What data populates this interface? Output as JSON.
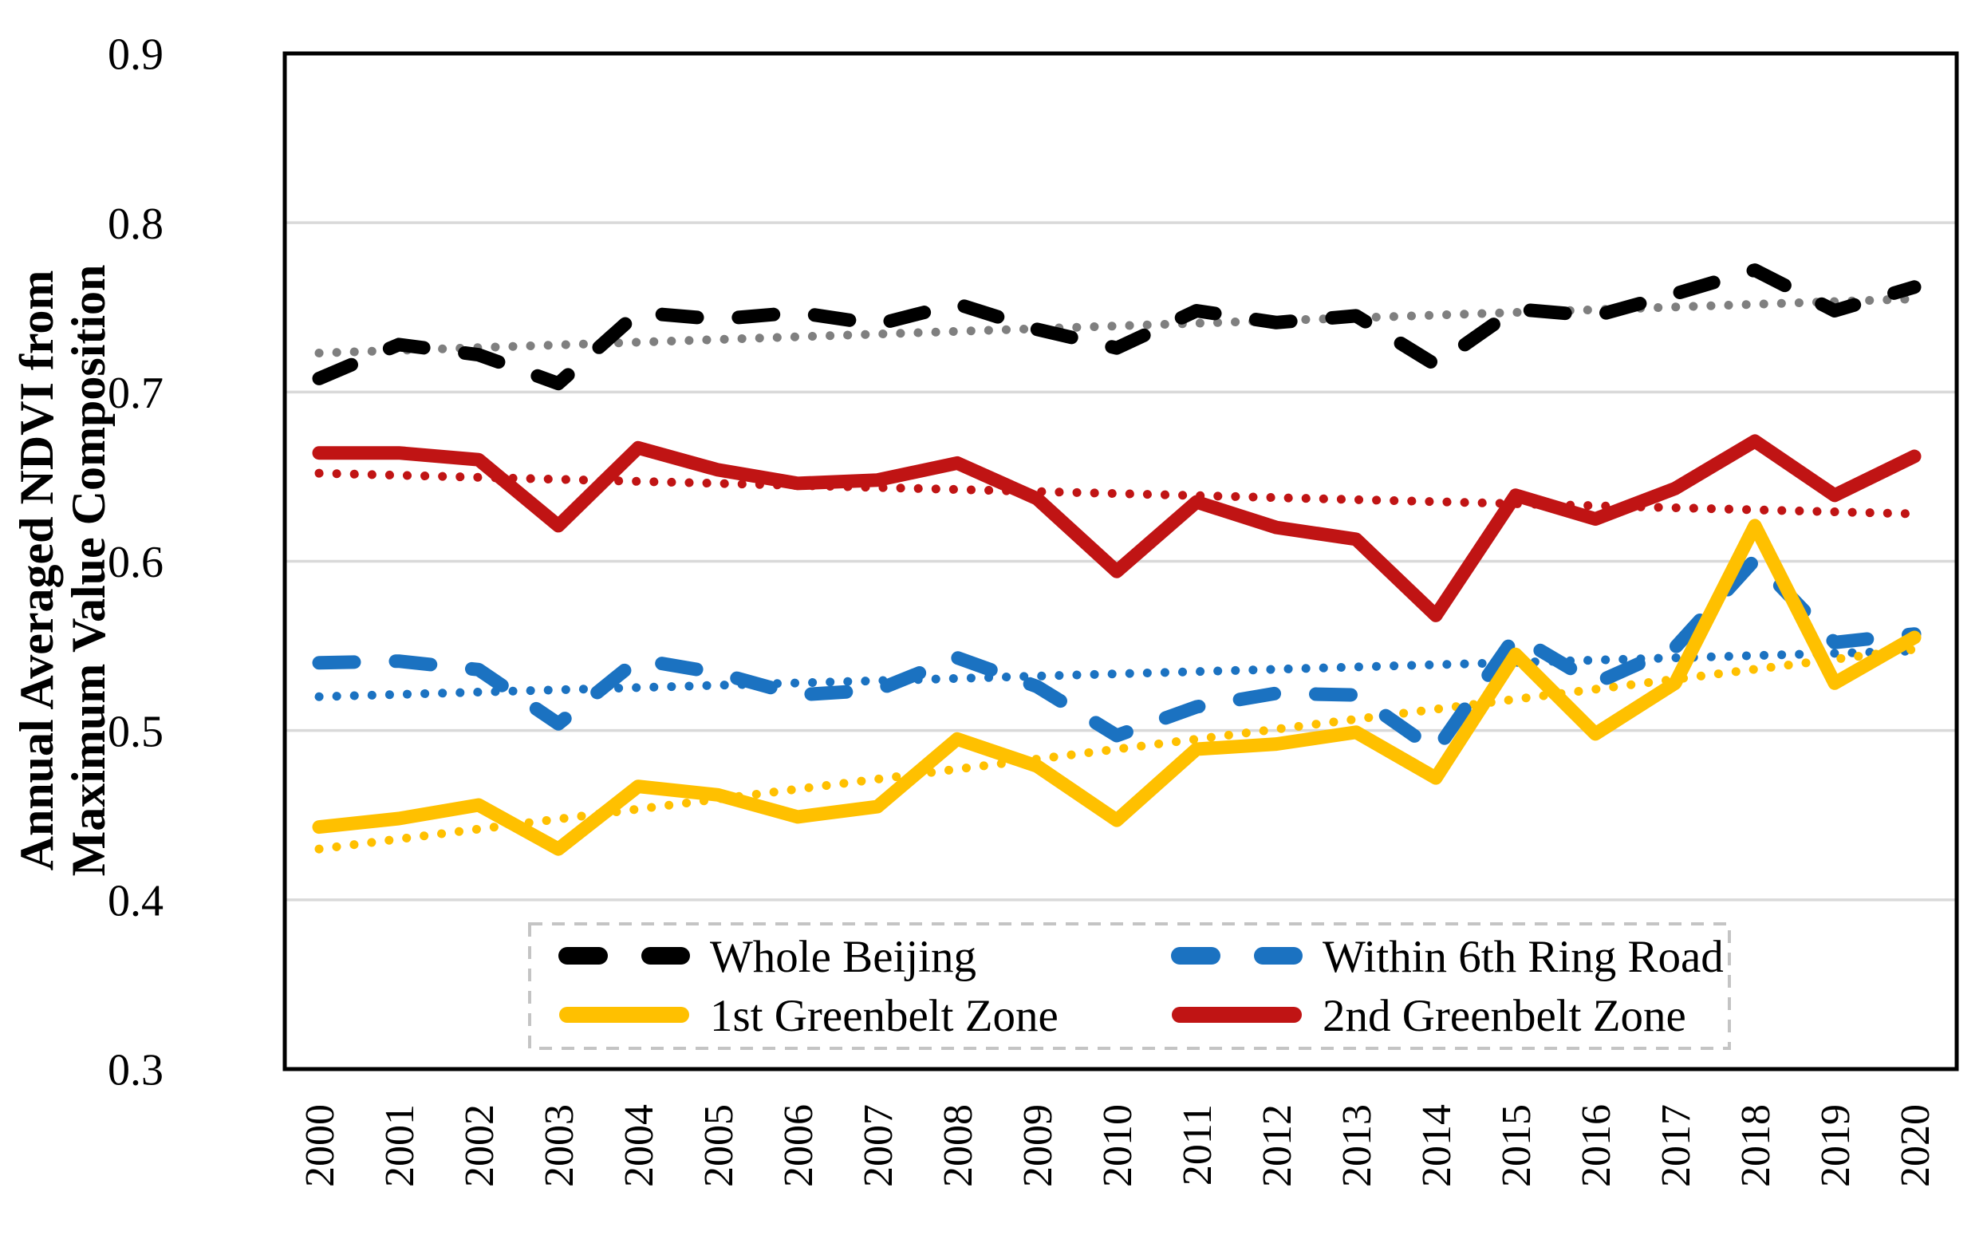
{
  "y_axis": {
    "title_line1": "Annual Averaged NDVI from",
    "title_line2": "Maximum Value Composition",
    "tick_labels": [
      "0.9",
      "0.8",
      "0.7",
      "0.6",
      "0.5",
      "0.4",
      "0.3"
    ],
    "tick_values": [
      0.9,
      0.8,
      0.7,
      0.6,
      0.5,
      0.4,
      0.3
    ],
    "min": 0.3,
    "max": 0.9
  },
  "x_axis": {
    "years": [
      "2000",
      "2001",
      "2002",
      "2003",
      "2004",
      "2005",
      "2006",
      "2007",
      "2008",
      "2009",
      "2010",
      "2011",
      "2012",
      "2013",
      "2014",
      "2015",
      "2016",
      "2017",
      "2018",
      "2019",
      "2020"
    ]
  },
  "legend": {
    "items": [
      {
        "label": "Whole Beijing",
        "color": "#000000",
        "style": "dashed"
      },
      {
        "label": "Within 6th Ring Road",
        "color": "#1B72C1",
        "style": "dashed"
      },
      {
        "label": "1st Greenbelt Zone",
        "color": "#FFC000",
        "style": "solid"
      },
      {
        "label": "2nd Greenbelt Zone",
        "color": "#C01414",
        "style": "solid"
      }
    ]
  },
  "colors": {
    "black_series": "#000000",
    "blue_series": "#1B72C1",
    "yellow_series": "#FFC000",
    "red_series": "#C01414",
    "black_trend": "#7F7F7F",
    "gridline": "#D9D9D9",
    "legend_border": "#C4C4C4"
  },
  "chart_data": {
    "type": "line",
    "title": "",
    "xlabel": "",
    "ylabel": "Annual Averaged NDVI from Maximum Value Composition",
    "x": [
      2000,
      2001,
      2002,
      2003,
      2004,
      2005,
      2006,
      2007,
      2008,
      2009,
      2010,
      2011,
      2012,
      2013,
      2014,
      2015,
      2016,
      2017,
      2018,
      2019,
      2020
    ],
    "ylim": [
      0.3,
      0.9
    ],
    "grid": true,
    "legend_position": "bottom-inside",
    "series": [
      {
        "name": "Whole Beijing",
        "color": "#000000",
        "line_style": "dashed",
        "values": [
          0.708,
          0.728,
          0.722,
          0.705,
          0.747,
          0.743,
          0.747,
          0.74,
          0.752,
          0.737,
          0.726,
          0.748,
          0.741,
          0.745,
          0.716,
          0.749,
          0.745,
          0.758,
          0.772,
          0.748,
          0.762
        ],
        "trend": {
          "type": "linear",
          "style": "dotted",
          "color": "#7F7F7F",
          "start": 0.723,
          "end": 0.755
        }
      },
      {
        "name": "Within 6th Ring Road",
        "color": "#1B72C1",
        "line_style": "dashed",
        "values": [
          0.54,
          0.541,
          0.536,
          0.504,
          0.542,
          0.534,
          0.521,
          0.524,
          0.543,
          0.526,
          0.497,
          0.514,
          0.522,
          0.521,
          0.488,
          0.556,
          0.528,
          0.549,
          0.601,
          0.552,
          0.557
        ],
        "trend": {
          "type": "linear",
          "style": "dotted",
          "color": "#1B72C1",
          "start": 0.52,
          "end": 0.547
        }
      },
      {
        "name": "1st Greenbelt Zone",
        "color": "#FFC000",
        "line_style": "solid",
        "values": [
          0.443,
          0.448,
          0.456,
          0.43,
          0.467,
          0.462,
          0.449,
          0.455,
          0.495,
          0.479,
          0.447,
          0.489,
          0.492,
          0.499,
          0.472,
          0.545,
          0.498,
          0.528,
          0.621,
          0.528,
          0.555
        ],
        "trend": {
          "type": "linear",
          "style": "dotted",
          "color": "#FFC000",
          "start": 0.43,
          "end": 0.548
        }
      },
      {
        "name": "2nd Greenbelt Zone",
        "color": "#C01414",
        "line_style": "solid",
        "values": [
          0.664,
          0.664,
          0.66,
          0.621,
          0.667,
          0.654,
          0.646,
          0.648,
          0.658,
          0.637,
          0.594,
          0.635,
          0.62,
          0.613,
          0.568,
          0.639,
          0.625,
          0.643,
          0.671,
          0.639,
          0.662
        ],
        "trend": {
          "type": "linear",
          "style": "dotted",
          "color": "#C01414",
          "start": 0.652,
          "end": 0.628
        }
      }
    ]
  }
}
